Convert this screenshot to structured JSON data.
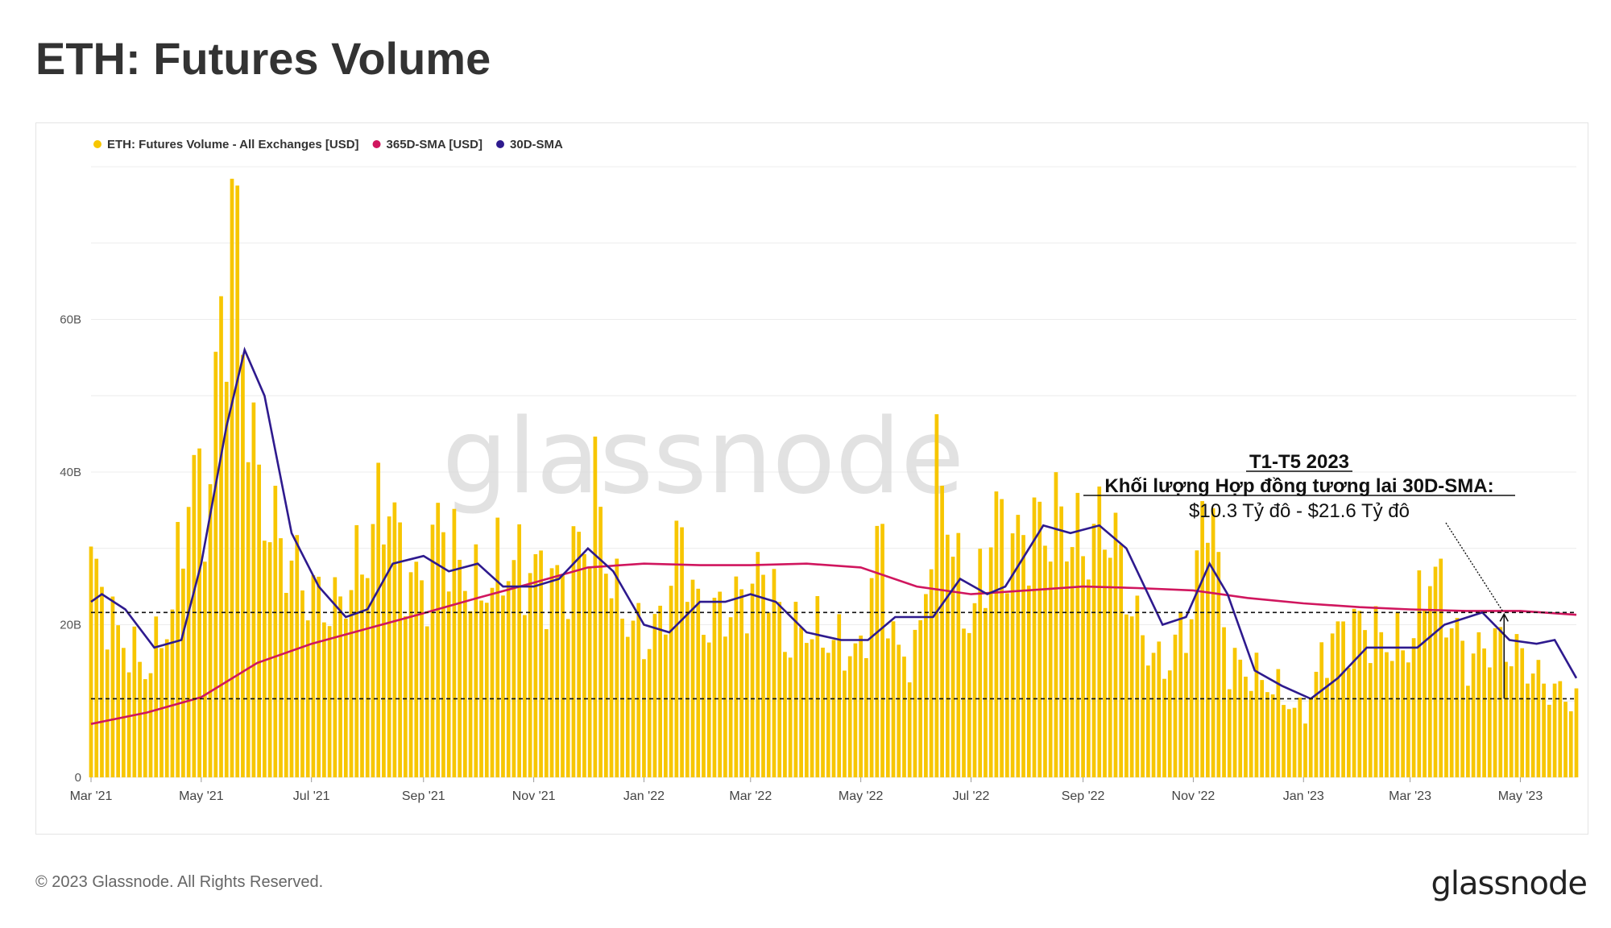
{
  "page": {
    "title": "ETH: Futures Volume",
    "copyright": "© 2023 Glassnode. All Rights Reserved.",
    "logo_text": "glassnode",
    "watermark": "glassnode"
  },
  "annotation": {
    "line1": "T1-T5 2023",
    "line2": "Khối lượng Hợp đồng tương lai 30D-SMA:",
    "line3": "$10.3 Tỷ đô - $21.6 Tỷ đô",
    "low_value": 10.3,
    "high_value": 21.6
  },
  "chart_data": {
    "type": "bar",
    "title": "ETH: Futures Volume",
    "legend_placement": "top-left",
    "colors": {
      "volume": "#f7c600",
      "sma365": "#d0165e",
      "sma30": "#2e1a8e"
    },
    "legend": [
      "ETH: Futures Volume - All Exchanges [USD]",
      "365D-SMA [USD]",
      "30D-SMA"
    ],
    "x_ticks": [
      "Mar '21",
      "May '21",
      "Jul '21",
      "Sep '21",
      "Nov '21",
      "Jan '22",
      "Mar '22",
      "May '22",
      "Jul '22",
      "Sep '22",
      "Nov '22",
      "Jan '23",
      "Mar '23",
      "May '23"
    ],
    "x_range": [
      "2021-03-01",
      "2023-06-01"
    ],
    "y_ticks": [
      "0",
      "20B",
      "40B",
      "60B"
    ],
    "y_range": [
      0,
      80
    ],
    "grid": true,
    "series": [
      {
        "name": "ETH: Futures Volume - All Exchanges [USD]",
        "kind": "bar",
        "points": [
          [
            "2021-03-01",
            28
          ],
          [
            "2021-03-15",
            19
          ],
          [
            "2021-04-01",
            14
          ],
          [
            "2021-04-15",
            22
          ],
          [
            "2021-04-25",
            40
          ],
          [
            "2021-05-05",
            35
          ],
          [
            "2021-05-12",
            60
          ],
          [
            "2021-05-19",
            75
          ],
          [
            "2021-05-25",
            55
          ],
          [
            "2021-06-01",
            38
          ],
          [
            "2021-06-15",
            30
          ],
          [
            "2021-07-01",
            24
          ],
          [
            "2021-07-15",
            22
          ],
          [
            "2021-08-01",
            30
          ],
          [
            "2021-08-12",
            38
          ],
          [
            "2021-08-20",
            28
          ],
          [
            "2021-09-01",
            24
          ],
          [
            "2021-09-10",
            34
          ],
          [
            "2021-09-20",
            28
          ],
          [
            "2021-10-01",
            24
          ],
          [
            "2021-10-15",
            28
          ],
          [
            "2021-11-01",
            27
          ],
          [
            "2021-11-15",
            25
          ],
          [
            "2021-12-01",
            32
          ],
          [
            "2021-12-06",
            38
          ],
          [
            "2021-12-15",
            24
          ],
          [
            "2022-01-01",
            18
          ],
          [
            "2022-01-10",
            20
          ],
          [
            "2022-01-22",
            32
          ],
          [
            "2022-02-01",
            20
          ],
          [
            "2022-02-15",
            22
          ],
          [
            "2022-03-01",
            24
          ],
          [
            "2022-03-10",
            28
          ],
          [
            "2022-03-20",
            18
          ],
          [
            "2022-04-01",
            20
          ],
          [
            "2022-04-15",
            18
          ],
          [
            "2022-05-01",
            16
          ],
          [
            "2022-05-12",
            33
          ],
          [
            "2022-05-20",
            16
          ],
          [
            "2022-06-01",
            16
          ],
          [
            "2022-06-14",
            42
          ],
          [
            "2022-06-25",
            24
          ],
          [
            "2022-07-01",
            20
          ],
          [
            "2022-07-15",
            34
          ],
          [
            "2022-07-25",
            30
          ],
          [
            "2022-08-01",
            32
          ],
          [
            "2022-08-20",
            34
          ],
          [
            "2022-09-01",
            30
          ],
          [
            "2022-09-15",
            34
          ],
          [
            "2022-10-01",
            20
          ],
          [
            "2022-10-15",
            14
          ],
          [
            "2022-11-01",
            22
          ],
          [
            "2022-11-09",
            40
          ],
          [
            "2022-11-20",
            15
          ],
          [
            "2022-12-01",
            14
          ],
          [
            "2022-12-15",
            12
          ],
          [
            "2023-01-01",
            8
          ],
          [
            "2023-01-15",
            18
          ],
          [
            "2023-02-01",
            20
          ],
          [
            "2023-02-15",
            18
          ],
          [
            "2023-03-01",
            17
          ],
          [
            "2023-03-12",
            28
          ],
          [
            "2023-03-25",
            20
          ],
          [
            "2023-04-01",
            15
          ],
          [
            "2023-04-15",
            18
          ],
          [
            "2023-05-01",
            16
          ],
          [
            "2023-05-15",
            12
          ],
          [
            "2023-06-01",
            10
          ]
        ]
      },
      {
        "name": "365D-SMA [USD]",
        "kind": "line",
        "points": [
          [
            "2021-03-01",
            7
          ],
          [
            "2021-04-01",
            8.5
          ],
          [
            "2021-05-01",
            10.5
          ],
          [
            "2021-06-01",
            15
          ],
          [
            "2021-07-01",
            17.5
          ],
          [
            "2021-08-01",
            19.5
          ],
          [
            "2021-09-01",
            21.5
          ],
          [
            "2021-10-01",
            23.5
          ],
          [
            "2021-11-01",
            25.5
          ],
          [
            "2021-12-01",
            27.5
          ],
          [
            "2022-01-01",
            28
          ],
          [
            "2022-02-01",
            27.8
          ],
          [
            "2022-03-01",
            27.8
          ],
          [
            "2022-04-01",
            28
          ],
          [
            "2022-05-01",
            27.5
          ],
          [
            "2022-06-01",
            25
          ],
          [
            "2022-07-01",
            24
          ],
          [
            "2022-08-01",
            24.5
          ],
          [
            "2022-09-01",
            25
          ],
          [
            "2022-10-01",
            24.8
          ],
          [
            "2022-11-01",
            24.5
          ],
          [
            "2022-12-01",
            23.5
          ],
          [
            "2023-01-01",
            22.8
          ],
          [
            "2023-02-01",
            22.3
          ],
          [
            "2023-03-01",
            22
          ],
          [
            "2023-04-01",
            21.8
          ],
          [
            "2023-05-01",
            21.8
          ],
          [
            "2023-06-01",
            21.3
          ]
        ]
      },
      {
        "name": "30D-SMA",
        "kind": "line",
        "points": [
          [
            "2021-03-01",
            23
          ],
          [
            "2021-03-07",
            24
          ],
          [
            "2021-03-20",
            22
          ],
          [
            "2021-04-05",
            17
          ],
          [
            "2021-04-20",
            18
          ],
          [
            "2021-05-01",
            28
          ],
          [
            "2021-05-15",
            46
          ],
          [
            "2021-05-25",
            56
          ],
          [
            "2021-06-05",
            50
          ],
          [
            "2021-06-20",
            32
          ],
          [
            "2021-07-05",
            25
          ],
          [
            "2021-07-20",
            21
          ],
          [
            "2021-08-01",
            22
          ],
          [
            "2021-08-15",
            28
          ],
          [
            "2021-09-01",
            29
          ],
          [
            "2021-09-15",
            27
          ],
          [
            "2021-10-01",
            28
          ],
          [
            "2021-10-15",
            25
          ],
          [
            "2021-11-01",
            25
          ],
          [
            "2021-11-15",
            26
          ],
          [
            "2021-12-01",
            30
          ],
          [
            "2021-12-15",
            27
          ],
          [
            "2022-01-01",
            20
          ],
          [
            "2022-01-15",
            19
          ],
          [
            "2022-02-01",
            23
          ],
          [
            "2022-02-15",
            23
          ],
          [
            "2022-03-01",
            24
          ],
          [
            "2022-03-15",
            23
          ],
          [
            "2022-04-01",
            19
          ],
          [
            "2022-04-20",
            18
          ],
          [
            "2022-05-05",
            18
          ],
          [
            "2022-05-20",
            21
          ],
          [
            "2022-06-10",
            21
          ],
          [
            "2022-06-25",
            26
          ],
          [
            "2022-07-10",
            24
          ],
          [
            "2022-07-20",
            25
          ],
          [
            "2022-08-10",
            33
          ],
          [
            "2022-08-25",
            32
          ],
          [
            "2022-09-10",
            33
          ],
          [
            "2022-09-25",
            30
          ],
          [
            "2022-10-15",
            20
          ],
          [
            "2022-10-28",
            21
          ],
          [
            "2022-11-10",
            28
          ],
          [
            "2022-11-20",
            24
          ],
          [
            "2022-12-05",
            14
          ],
          [
            "2022-12-20",
            12
          ],
          [
            "2023-01-05",
            10.3
          ],
          [
            "2023-01-20",
            13
          ],
          [
            "2023-02-05",
            17
          ],
          [
            "2023-02-20",
            17
          ],
          [
            "2023-03-05",
            17
          ],
          [
            "2023-03-20",
            20
          ],
          [
            "2023-04-10",
            21.6
          ],
          [
            "2023-04-25",
            18
          ],
          [
            "2023-05-10",
            17.5
          ],
          [
            "2023-05-20",
            18
          ],
          [
            "2023-06-01",
            13
          ]
        ]
      }
    ]
  }
}
